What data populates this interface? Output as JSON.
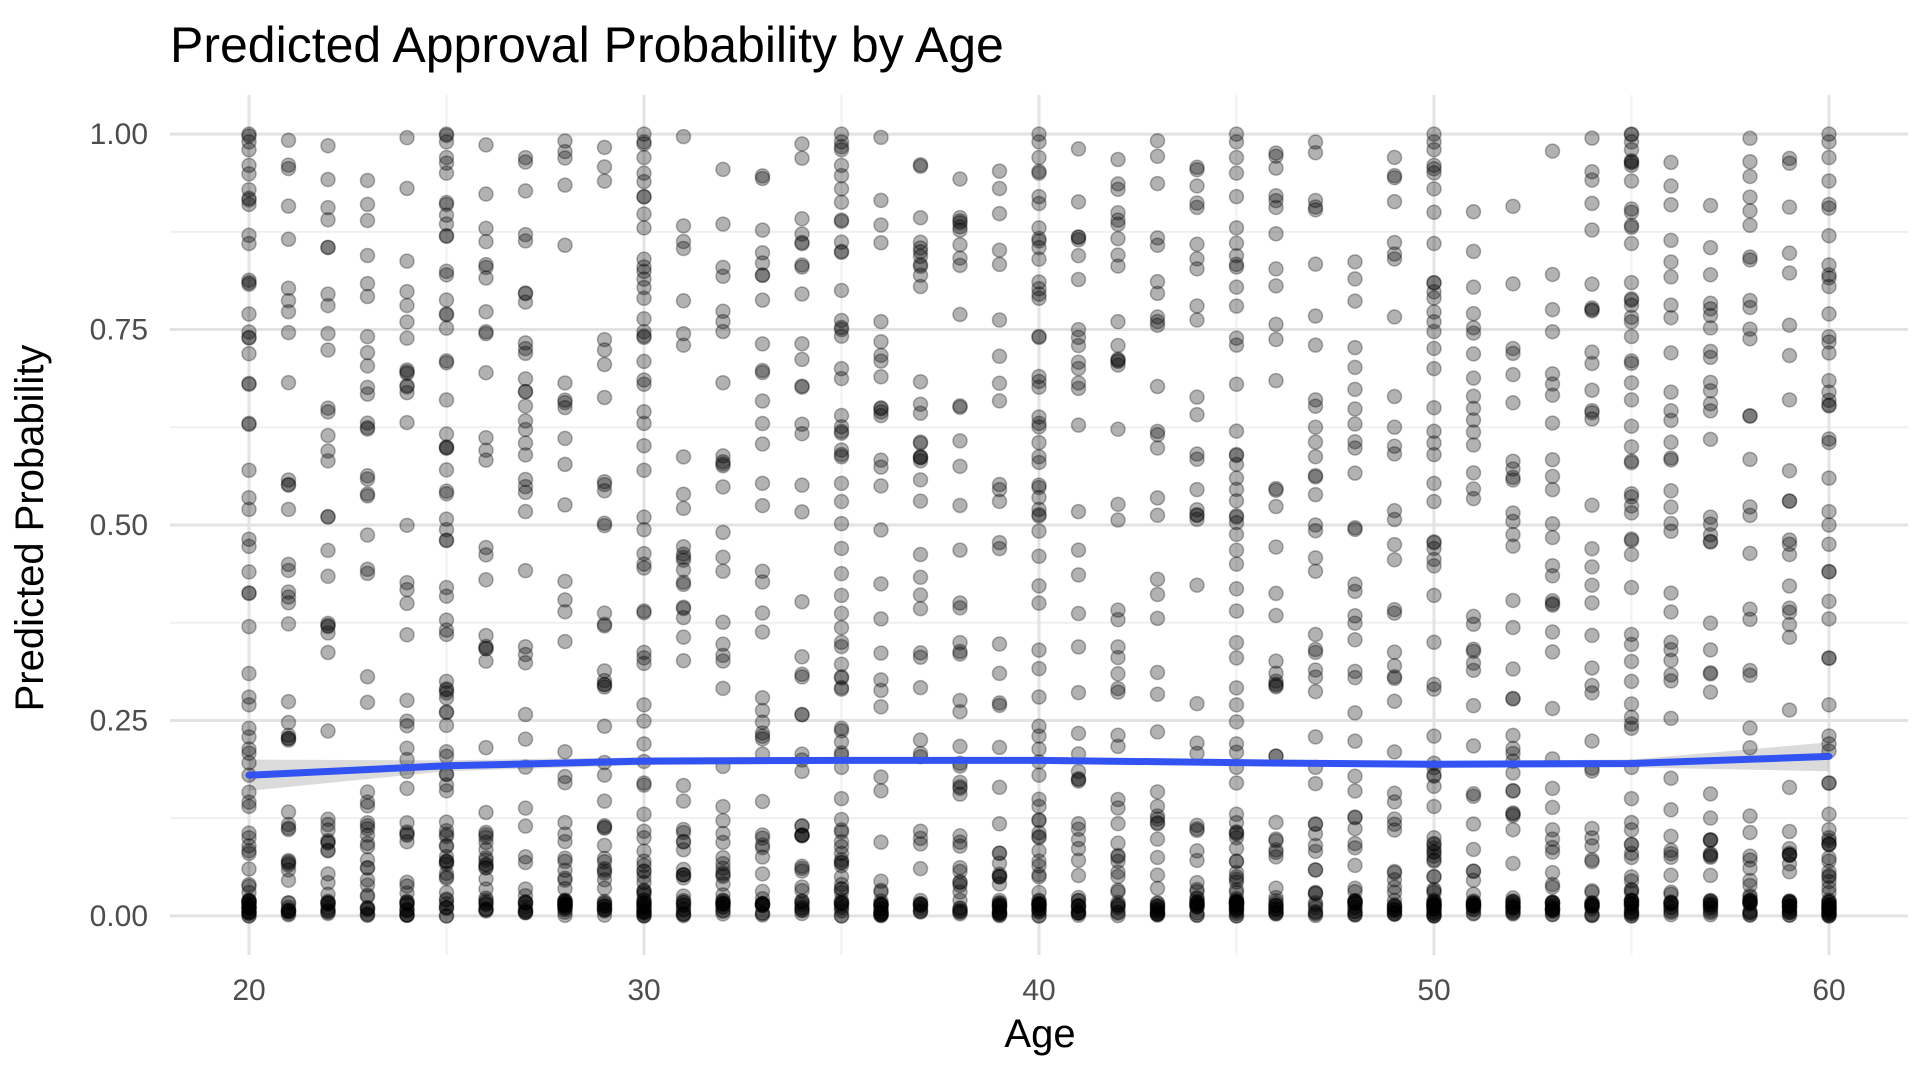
{
  "chart_data": {
    "type": "scatter",
    "title": "Predicted Approval Probability by Age",
    "xlabel": "Age",
    "ylabel": "Predicted Probability",
    "xlim": [
      18,
      62
    ],
    "ylim": [
      -0.05,
      1.05
    ],
    "x_ticks": [
      20,
      30,
      40,
      50,
      60
    ],
    "x_tick_labels": [
      "20",
      "30",
      "40",
      "50",
      "60"
    ],
    "y_ticks": [
      0,
      0.25,
      0.5,
      0.75,
      1
    ],
    "y_tick_labels": [
      "0.00",
      "0.25",
      "0.50",
      "0.75",
      "1.00"
    ],
    "x_minor_ticks": [
      25,
      35,
      45,
      55
    ],
    "y_minor_ticks": [
      0.125,
      0.375,
      0.625,
      0.875
    ],
    "grid": true,
    "legend": "none",
    "point_color": "#000000",
    "point_alpha": 0.3,
    "ages": [
      20,
      21,
      22,
      23,
      24,
      25,
      26,
      27,
      28,
      29,
      30,
      31,
      32,
      33,
      34,
      35,
      36,
      37,
      38,
      39,
      40,
      41,
      42,
      43,
      44,
      45,
      46,
      47,
      48,
      49,
      50,
      51,
      52,
      53,
      54,
      55,
      56,
      57,
      58,
      59,
      60
    ],
    "series": [
      {
        "type": "points",
        "x": [
          20,
          20,
          20,
          20,
          20,
          20,
          20,
          20,
          20,
          20,
          20,
          20,
          20,
          20,
          20,
          20,
          20,
          20,
          20,
          20,
          20,
          20,
          20,
          20,
          20,
          20,
          20,
          20,
          25,
          25,
          25,
          25,
          25,
          25,
          25,
          25,
          25,
          25,
          25,
          25,
          25,
          25,
          25,
          25,
          25,
          25,
          25,
          25,
          25,
          25,
          25,
          25,
          25,
          25,
          25,
          25,
          30,
          30,
          30,
          30,
          30,
          30,
          30,
          30,
          30,
          30,
          30,
          30,
          30,
          30,
          30,
          30,
          30,
          30,
          30,
          30,
          30,
          30,
          30,
          30,
          30,
          30,
          30,
          30,
          35,
          35,
          35,
          35,
          35,
          35,
          35,
          35,
          35,
          35,
          35,
          35,
          35,
          35,
          35,
          35,
          35,
          35,
          35,
          35,
          35,
          35,
          35,
          35,
          35,
          35,
          35,
          35,
          40,
          40,
          40,
          40,
          40,
          40,
          40,
          40,
          40,
          40,
          40,
          40,
          40,
          40,
          40,
          40,
          40,
          40,
          40,
          40,
          40,
          40,
          40,
          40,
          40,
          40,
          40,
          40,
          45,
          45,
          45,
          45,
          45,
          45,
          45,
          45,
          45,
          45,
          45,
          45,
          45,
          45,
          45,
          45,
          45,
          45,
          45,
          45,
          45,
          45,
          45,
          45,
          45,
          45,
          45,
          45,
          50,
          50,
          50,
          50,
          50,
          50,
          50,
          50,
          50,
          50,
          50,
          50,
          50,
          50,
          50,
          50,
          50,
          50,
          50,
          50,
          50,
          50,
          50,
          50,
          50,
          50,
          50,
          50,
          55,
          55,
          55,
          55,
          55,
          55,
          55,
          55,
          55,
          55,
          55,
          55,
          55,
          55,
          55,
          55,
          55,
          55,
          55,
          55,
          55,
          55,
          55,
          55,
          55,
          55,
          55,
          55,
          60,
          60,
          60,
          60,
          60,
          60,
          60,
          60,
          60,
          60,
          60,
          60,
          60,
          60,
          60,
          60,
          60,
          60,
          60,
          60,
          60,
          60,
          60,
          60,
          60,
          60,
          60,
          60
        ],
        "y": [
          0.0,
          0.01,
          0.02,
          0.03,
          0.04,
          0.06,
          0.08,
          0.1,
          0.14,
          0.18,
          0.24,
          0.27,
          0.31,
          0.37,
          0.44,
          0.52,
          0.57,
          0.63,
          0.68,
          0.74,
          0.81,
          0.86,
          0.91,
          0.96,
          0.98,
          0.99,
          1.0,
          0.0,
          0.0,
          0.01,
          0.02,
          0.03,
          0.05,
          0.07,
          0.09,
          0.12,
          0.16,
          0.21,
          0.26,
          0.3,
          0.36,
          0.42,
          0.48,
          0.54,
          0.6,
          0.66,
          0.71,
          0.77,
          0.82,
          0.87,
          0.91,
          0.95,
          0.97,
          0.99,
          1.0,
          0.0,
          0.0,
          0.01,
          0.02,
          0.03,
          0.05,
          0.07,
          0.1,
          0.13,
          0.17,
          0.22,
          0.27,
          0.33,
          0.39,
          0.45,
          0.51,
          0.57,
          0.63,
          0.68,
          0.74,
          0.79,
          0.84,
          0.88,
          0.92,
          0.95,
          0.97,
          0.99,
          1.0,
          0.0,
          0.0,
          0.01,
          0.02,
          0.03,
          0.05,
          0.08,
          0.11,
          0.15,
          0.19,
          0.24,
          0.29,
          0.35,
          0.41,
          0.47,
          0.53,
          0.59,
          0.64,
          0.7,
          0.75,
          0.8,
          0.85,
          0.89,
          0.93,
          0.96,
          0.98,
          0.99,
          1.0,
          0.0,
          0.0,
          0.01,
          0.02,
          0.03,
          0.05,
          0.07,
          0.1,
          0.14,
          0.18,
          0.23,
          0.28,
          0.34,
          0.4,
          0.46,
          0.52,
          0.58,
          0.63,
          0.69,
          0.74,
          0.79,
          0.84,
          0.88,
          0.92,
          0.95,
          0.97,
          0.99,
          1.0,
          0.0,
          0.0,
          0.01,
          0.02,
          0.03,
          0.05,
          0.07,
          0.1,
          0.13,
          0.17,
          0.22,
          0.27,
          0.33,
          0.39,
          0.45,
          0.51,
          0.56,
          0.62,
          0.68,
          0.73,
          0.78,
          0.83,
          0.88,
          0.92,
          0.95,
          0.97,
          0.99,
          1.0,
          0.0,
          0.0,
          0.01,
          0.02,
          0.03,
          0.05,
          0.07,
          0.1,
          0.14,
          0.18,
          0.23,
          0.29,
          0.35,
          0.41,
          0.47,
          0.53,
          0.59,
          0.65,
          0.7,
          0.76,
          0.81,
          0.86,
          0.9,
          0.93,
          0.96,
          0.98,
          0.99,
          1.0,
          0.0,
          0.0,
          0.01,
          0.02,
          0.03,
          0.05,
          0.08,
          0.11,
          0.15,
          0.19,
          0.24,
          0.3,
          0.36,
          0.42,
          0.48,
          0.54,
          0.6,
          0.66,
          0.71,
          0.76,
          0.81,
          0.86,
          0.9,
          0.94,
          0.96,
          0.98,
          0.99,
          1.0,
          0.0,
          0.0,
          0.01,
          0.02,
          0.03,
          0.05,
          0.07,
          0.1,
          0.13,
          0.17,
          0.22,
          0.27,
          0.33,
          0.38,
          0.44,
          0.5,
          0.56,
          0.61,
          0.67,
          0.72,
          0.77,
          0.82,
          0.87,
          0.91,
          0.94,
          0.97,
          0.99,
          1.0,
          0.0
        ]
      },
      {
        "type": "smooth_line",
        "color": "#3253f1",
        "x": [
          20,
          25,
          30,
          35,
          40,
          45,
          50,
          55,
          60
        ],
        "y": [
          0.18,
          0.192,
          0.198,
          0.199,
          0.199,
          0.196,
          0.194,
          0.195,
          0.204
        ],
        "ci_lower": [
          0.16,
          0.185,
          0.193,
          0.195,
          0.195,
          0.192,
          0.19,
          0.19,
          0.185
        ],
        "ci_upper": [
          0.2,
          0.199,
          0.203,
          0.203,
          0.203,
          0.2,
          0.198,
          0.2,
          0.222
        ]
      }
    ]
  }
}
